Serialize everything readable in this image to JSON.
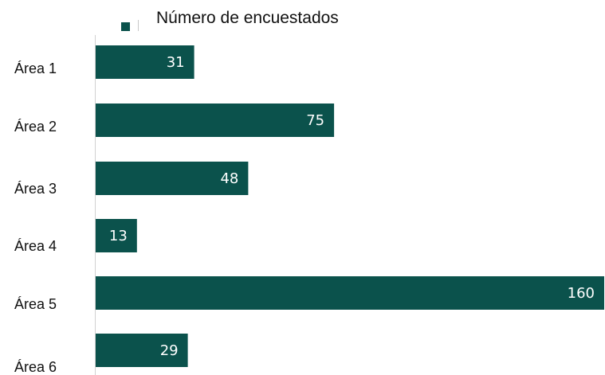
{
  "colors": {
    "bar": "#0b524c",
    "axis": "#d0d0d0",
    "label": "#111111",
    "value_label": "#ffffff"
  },
  "chart_data": {
    "type": "bar",
    "orientation": "horizontal",
    "categories": [
      "Área 1",
      "Área 2",
      "Área 3",
      "Área 4",
      "Área 5",
      "Área 6"
    ],
    "series": [
      {
        "name": "Número de encuestados",
        "values": [
          31,
          75,
          48,
          13,
          160,
          29
        ]
      }
    ],
    "xlim": [
      0,
      160
    ],
    "grid": false,
    "legend": {
      "position": "top",
      "entries": [
        "Número de encuestados"
      ]
    },
    "data_labels": true
  }
}
